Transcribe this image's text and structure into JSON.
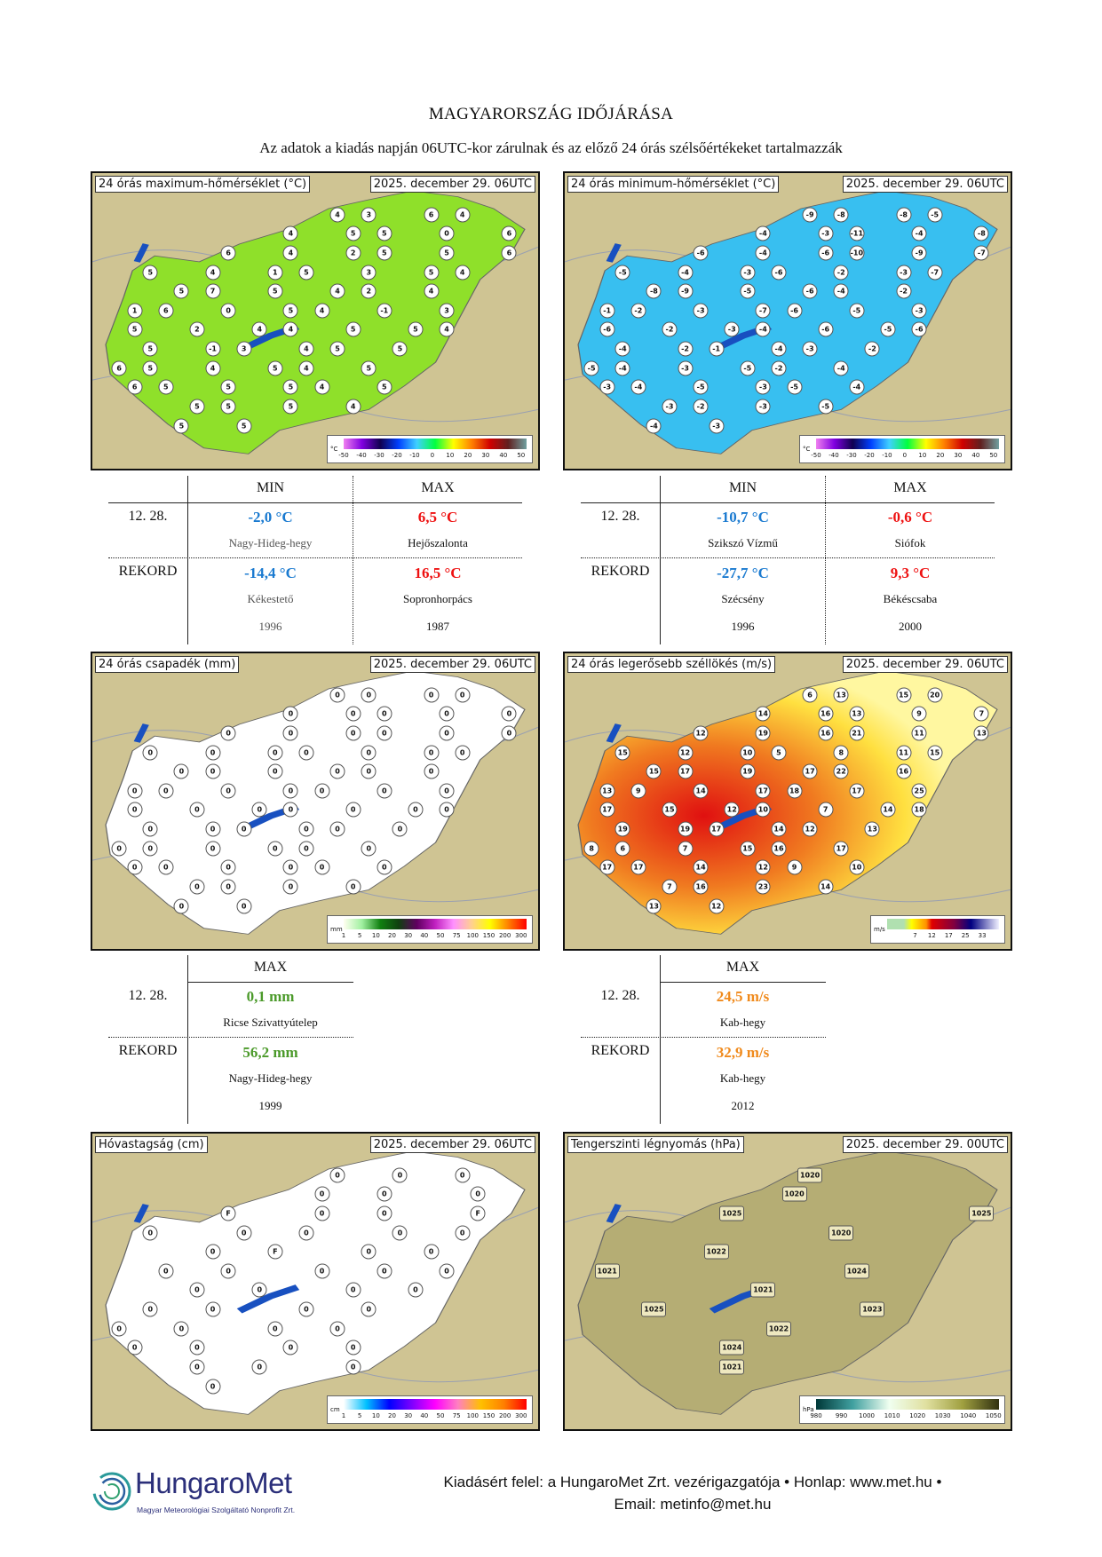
{
  "header": {
    "title": "MAGYARORSZÁG IDŐJÁRÁSA",
    "subtitle": "Az adatok a kiadás napján 06UTC-kor zárulnak és az előző 24 órás szélsőértékeket tartalmazzák"
  },
  "maps": [
    {
      "label": "24 órás maximum-hőmérséklet (°C)",
      "date": "2025. december 29. 06UTC",
      "fill": "#8fe02a",
      "unit": "°C",
      "ticks": [
        "-50",
        "-40",
        "-30",
        "-20",
        "-10",
        "0",
        "10",
        "20",
        "30",
        "40",
        "50"
      ],
      "gradient": "linear-gradient(90deg,#f080f0,#8000e0,#100050,#0040ff,#40d0ff,#00ff40,#ffff00,#ff8000,#d00000,#602020,#70a0a0)",
      "stations": [
        "4",
        "3",
        "6",
        "4",
        "4",
        "5",
        "5",
        "0",
        "6",
        "6",
        "4",
        "2",
        "5",
        "5",
        "6",
        "5",
        "4",
        "1",
        "5",
        "3",
        "5",
        "4",
        "5",
        "7",
        "5",
        "4",
        "2",
        "4",
        "1",
        "6",
        "0",
        "5",
        "4",
        "-1",
        "3",
        "5",
        "2",
        "4",
        "4",
        "5",
        "5",
        "4",
        "5",
        "-1",
        "3",
        "4",
        "5",
        "5",
        "6",
        "5",
        "4",
        "5",
        "4",
        "5",
        "6",
        "5",
        "5",
        "5",
        "4",
        "5",
        "5",
        "5",
        "5",
        "4",
        "5",
        "5"
      ]
    },
    {
      "label": "24 órás minimum-hőmérséklet (°C)",
      "date": "2025. december 29. 06UTC",
      "fill": "#38bff0",
      "unit": "°C",
      "ticks": [
        "-50",
        "-40",
        "-30",
        "-20",
        "-10",
        "0",
        "10",
        "20",
        "30",
        "40",
        "50"
      ],
      "gradient": "linear-gradient(90deg,#f080f0,#8000e0,#100050,#0040ff,#40d0ff,#00ff40,#ffff00,#ff8000,#d00000,#602020,#70a0a0)",
      "stations": [
        "-9",
        "-8",
        "-8",
        "-5",
        "-4",
        "-3",
        "-11",
        "-4",
        "-8",
        "-6",
        "-4",
        "-6",
        "-10",
        "-9",
        "-7",
        "-5",
        "-4",
        "-3",
        "-6",
        "-2",
        "-3",
        "-7",
        "-8",
        "-9",
        "-5",
        "-6",
        "-4",
        "-2",
        "-1",
        "-2",
        "-3",
        "-7",
        "-6",
        "-5",
        "-3",
        "-6",
        "-2",
        "-3",
        "-4",
        "-6",
        "-5",
        "-6",
        "-4",
        "-2",
        "-1",
        "-4",
        "-3",
        "-2",
        "-5",
        "-4",
        "-3",
        "-5",
        "-2",
        "-4",
        "-3",
        "-4",
        "-5",
        "-3",
        "-5",
        "-4",
        "-3",
        "-2",
        "-3",
        "-5",
        "-4",
        "-3"
      ]
    },
    {
      "label": "24 órás csapadék (mm)",
      "date": "2025. december 29. 06UTC",
      "fill": "#ffffff",
      "unit": "mm",
      "ticks": [
        "1",
        "5",
        "10",
        "20",
        "30",
        "40",
        "50",
        "75",
        "100",
        "150",
        "200",
        "300"
      ],
      "gradient": "linear-gradient(90deg,#fffff0,#a0f0a0,#108010,#104010,#600060,#c020c0,#ff90ff,#ffd090,#ffff00,#ff8000,#ff0000)",
      "stations": [
        "0",
        "0",
        "0",
        "0",
        "0",
        "0",
        "0",
        "0",
        "0",
        "0",
        "0",
        "0",
        "0",
        "0",
        "0",
        "0",
        "0",
        "0",
        "0",
        "0",
        "0",
        "0",
        "0",
        "0",
        "0",
        "0",
        "0",
        "0",
        "0",
        "0",
        "0",
        "0",
        "0",
        "0",
        "0",
        "0",
        "0",
        "0",
        "0",
        "0",
        "0",
        "0",
        "0",
        "0",
        "0",
        "0",
        "0",
        "0",
        "0",
        "0",
        "0",
        "0",
        "0",
        "0",
        "0",
        "0",
        "0",
        "0",
        "0",
        "0",
        "0",
        "0",
        "0",
        "0",
        "0",
        "0"
      ]
    },
    {
      "label": "24 órás legerősebb széllökés (m/s)",
      "date": "2025. december 29. 06UTC",
      "fill": "#f07020",
      "unit": "m/s",
      "ticks": [
        "7",
        "12",
        "17",
        "25",
        "33"
      ],
      "gradient": "linear-gradient(90deg,#b0e0b0 0%,#b0e0b0 15%,#ffff00 22%,#ff9000 35%,#e00000 40%,#800040 60%,#000080 75%,#f0f0ff 100%)",
      "stations": [
        "6",
        "13",
        "15",
        "20",
        "14",
        "16",
        "13",
        "9",
        "7",
        "12",
        "19",
        "16",
        "21",
        "11",
        "13",
        "15",
        "12",
        "10",
        "5",
        "8",
        "11",
        "15",
        "15",
        "17",
        "19",
        "17",
        "22",
        "16",
        "13",
        "9",
        "14",
        "17",
        "18",
        "17",
        "25",
        "17",
        "15",
        "12",
        "10",
        "7",
        "14",
        "18",
        "19",
        "19",
        "17",
        "14",
        "12",
        "13",
        "8",
        "6",
        "7",
        "15",
        "16",
        "17",
        "17",
        "17",
        "14",
        "12",
        "9",
        "10",
        "7",
        "16",
        "23",
        "14",
        "13",
        "12"
      ]
    },
    {
      "label": "Hóvastagság (cm)",
      "date": "2025. december 29. 06UTC",
      "fill": "#ffffff",
      "unit": "cm",
      "ticks": [
        "1",
        "5",
        "10",
        "20",
        "30",
        "40",
        "50",
        "75",
        "100",
        "150",
        "200",
        "300"
      ],
      "gradient": "linear-gradient(90deg,#ffffff,#00c0ff,#0000ff,#8000ff,#ff00ff,#ff80c0,#ffc000,#ff8000,#ff0000)",
      "stations": [
        "0",
        "0",
        "0",
        "0",
        "0",
        "0",
        "F",
        "0",
        "0",
        "F",
        "0",
        "0",
        "0",
        "0",
        "0",
        "0",
        "F",
        "0",
        "0",
        "0",
        "0",
        "0",
        "0",
        "0",
        "0",
        "0",
        "0",
        "0",
        "0",
        "0",
        "0",
        "0",
        "0",
        "0",
        "0",
        "0",
        "0",
        "0",
        "0",
        "0",
        "0",
        "0",
        "0",
        "0"
      ]
    },
    {
      "label": "Tengerszinti légnyomás (hPa)",
      "date": "2025. december 29. 00UTC",
      "fill": "#b5ad74",
      "unit": "hPa",
      "ticks": [
        "980",
        "990",
        "1000",
        "1010",
        "1020",
        "1030",
        "1040",
        "1050"
      ],
      "gradient": "linear-gradient(90deg,#003838,#40a0a0,#f0fff0,#e0e0a0,#a0a040,#303010)",
      "stations": [
        "1020",
        "1020",
        "1025",
        "1025",
        "1020",
        "1022",
        "1021",
        "1024",
        "1021",
        "1025",
        "1023",
        "1022",
        "1024",
        "1021"
      ]
    }
  ],
  "temp_tables": [
    {
      "col_min": "MIN",
      "col_max": "MAX",
      "date": "12. 28.",
      "min_value": "-2,0 °C",
      "min_station": "Nagy-Hideg-hegy",
      "max_value": "6,5 °C",
      "max_station": "Hejőszalonta",
      "record_label": "REKORD",
      "rec_min_value": "-14,4 °C",
      "rec_min_station": "Kékestető",
      "rec_min_year": "1996",
      "rec_max_value": "16,5 °C",
      "rec_max_station": "Sopronhorpács",
      "rec_max_year": "1987"
    },
    {
      "col_min": "MIN",
      "col_max": "MAX",
      "date": "12. 28.",
      "min_value": "-10,7 °C",
      "min_station": "Szikszó Vízmű",
      "max_value": "-0,6 °C",
      "max_station": "Siófok",
      "record_label": "REKORD",
      "rec_min_value": "-27,7 °C",
      "rec_min_station": "Szécsény",
      "rec_min_year": "1996",
      "rec_max_value": "9,3 °C",
      "rec_max_station": "Békéscsaba",
      "rec_max_year": "2000"
    }
  ],
  "max_tables": [
    {
      "col_max": "MAX",
      "date": "12. 28.",
      "value": "0,1 mm",
      "station": "Ricse Szivattyútelep",
      "record_label": "REKORD",
      "rec_value": "56,2 mm",
      "rec_station": "Nagy-Hideg-hegy",
      "rec_year": "1999"
    },
    {
      "col_max": "MAX",
      "date": "12. 28.",
      "value": "24,5 m/s",
      "station": "Kab-hegy",
      "record_label": "REKORD",
      "rec_value": "32,9 m/s",
      "rec_station": "Kab-hegy",
      "rec_year": "2012"
    }
  ],
  "footer": {
    "line1": "Kiadásért felel: a HungaroMet Zrt. vezérigazgatója • Honlap: www.met.hu •",
    "line2": "Email: metinfo@met.hu",
    "logo_name": "HungaroMet",
    "logo_sub": "Magyar Meteorológiai Szolgáltató Nonprofit Zrt."
  }
}
